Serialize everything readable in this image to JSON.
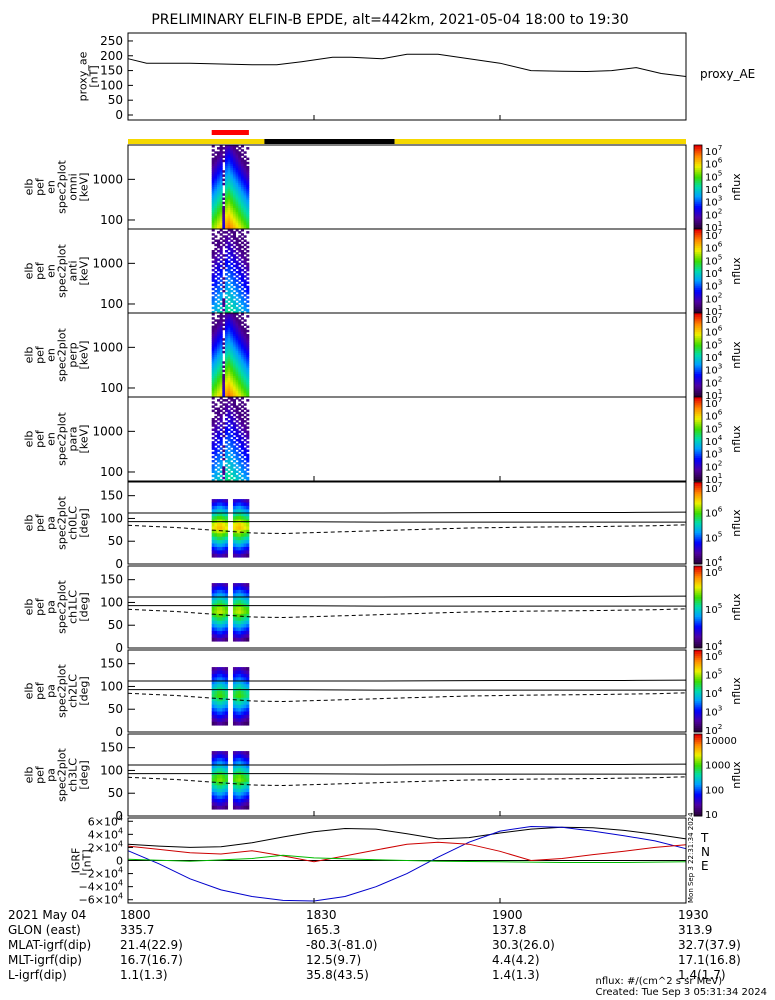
{
  "title": "PRELIMINARY ELFIN-B EPDE, alt=442km, 2021-05-04 18:00 to 19:30",
  "colors": {
    "ae_line": "#000000",
    "status_yellow": "#f5d800",
    "status_black": "#000000",
    "status_red": "#ff0000",
    "bx": "#000000",
    "by": "#0000cc",
    "bz": "#cc0000",
    "bt": "#00bb00",
    "grid": "#000000"
  },
  "ae_panel": {
    "ylabel": [
      "proxy_ae",
      "[nT]"
    ],
    "yticks": [
      "250",
      "200",
      "150",
      "100",
      "50",
      "0"
    ],
    "legend": "proxy_AE"
  },
  "energy_panels": [
    {
      "name": "omni",
      "ylabel": [
        "elb",
        "pef",
        "en",
        "spec2plot",
        "omni",
        "[keV]"
      ],
      "yticks": [
        "1000",
        "100"
      ],
      "cbar_ticks": [
        "10^7",
        "10^6",
        "10^5",
        "10^4",
        "10^3",
        "10^2",
        "10^1"
      ],
      "cbar_label": "nflux"
    },
    {
      "name": "anti",
      "ylabel": [
        "elb",
        "pef",
        "en",
        "spec2plot",
        "anti",
        "[keV]"
      ],
      "yticks": [
        "1000",
        "100"
      ],
      "cbar_ticks": [
        "10^7",
        "10^6",
        "10^5",
        "10^4",
        "10^3",
        "10^2",
        "10^1"
      ],
      "cbar_label": "nflux"
    },
    {
      "name": "perp",
      "ylabel": [
        "elb",
        "pef",
        "en",
        "spec2plot",
        "perp",
        "[keV]"
      ],
      "yticks": [
        "1000",
        "100"
      ],
      "cbar_ticks": [
        "10^7",
        "10^6",
        "10^5",
        "10^4",
        "10^3",
        "10^2",
        "10^1"
      ],
      "cbar_label": "nflux"
    },
    {
      "name": "para",
      "ylabel": [
        "elb",
        "pef",
        "en",
        "spec2plot",
        "para",
        "[keV]"
      ],
      "yticks": [
        "1000",
        "100"
      ],
      "cbar_ticks": [
        "10^7",
        "10^6",
        "10^5",
        "10^4",
        "10^3",
        "10^2",
        "10^1"
      ],
      "cbar_label": "nflux"
    }
  ],
  "pitch_panels": [
    {
      "name": "ch0LC",
      "ylabel": [
        "elb",
        "pef",
        "pa",
        "spec2plot",
        "ch0LC",
        "[deg]"
      ],
      "yticks": [
        "150",
        "100",
        "50",
        "0"
      ],
      "cbar_ticks": [
        "10^7",
        "10^6",
        "10^5",
        "10^4"
      ],
      "cbar_label": "nflux"
    },
    {
      "name": "ch1LC",
      "ylabel": [
        "elb",
        "pef",
        "pa",
        "spec2plot",
        "ch1LC",
        "[deg]"
      ],
      "yticks": [
        "150",
        "100",
        "50",
        "0"
      ],
      "cbar_ticks": [
        "10^6",
        "10^5",
        "10^4"
      ],
      "cbar_label": "nflux"
    },
    {
      "name": "ch2LC",
      "ylabel": [
        "elb",
        "pef",
        "pa",
        "spec2plot",
        "ch2LC",
        "[deg]"
      ],
      "yticks": [
        "150",
        "100",
        "50",
        "0"
      ],
      "cbar_ticks": [
        "10^6",
        "10^5",
        "10^4",
        "10^3",
        "10^2"
      ],
      "cbar_label": "nflux"
    },
    {
      "name": "ch3LC",
      "ylabel": [
        "elb",
        "pef",
        "pa",
        "spec2plot",
        "ch3LC",
        "[deg]"
      ],
      "yticks": [
        "150",
        "100",
        "50",
        "0"
      ],
      "cbar_ticks": [
        "10000",
        "1000",
        "100",
        "10"
      ],
      "cbar_label": "nflux"
    }
  ],
  "igrf_panel": {
    "ylabel": [
      "IGRF",
      "[nT]"
    ],
    "yticks": [
      "6×10^4",
      "4×10^4",
      "2×10^4",
      "0",
      "−2×10^4",
      "−4×10^4",
      "−6×10^4"
    ],
    "legend": [
      "T",
      "N",
      "E"
    ],
    "stamp": "Mon Sep  3 22:31:34 2024"
  },
  "footer": {
    "rows": [
      {
        "label": "2021 May 04",
        "values": [
          "1800",
          "1830",
          "1900",
          "1930"
        ]
      },
      {
        "label": "GLON (east)",
        "values": [
          "335.7",
          "165.3",
          "137.8",
          "313.9"
        ]
      },
      {
        "label": "MLAT-igrf(dip)",
        "values": [
          "21.4(22.9)",
          "-80.3(-81.0)",
          "30.3(26.0)",
          "32.7(37.9)"
        ]
      },
      {
        "label": "MLT-igrf(dip)",
        "values": [
          "16.7(16.7)",
          "12.5(9.7)",
          "4.4(4.2)",
          "17.1(16.8)"
        ]
      },
      {
        "label": "L-igrf(dip)",
        "values": [
          "1.1(1.3)",
          "35.8(43.5)",
          "1.4(1.3)",
          "1.4(1.7)"
        ]
      }
    ],
    "units": "nflux: #/(cm^2 s sr MeV)",
    "created": "Created: Tue Sep  3 05:31:34 2024"
  },
  "chart_data": {
    "type": "heatmap",
    "time_range": [
      "18:00",
      "19:30"
    ],
    "xtick_labels": [
      "1800",
      "1830",
      "1900",
      "1930"
    ],
    "status_bar": [
      {
        "from": "18:00",
        "to": "18:22",
        "color": "yellow"
      },
      {
        "from": "18:22",
        "to": "18:43",
        "color": "black"
      },
      {
        "from": "18:43",
        "to": "19:30",
        "color": "yellow"
      }
    ],
    "science_zone": {
      "from": "18:13.5",
      "to": "18:19.5",
      "color": "red"
    },
    "proxy_ae": {
      "ylim": [
        0,
        260
      ],
      "x_min": [
        0,
        3,
        10,
        20,
        24,
        28,
        33,
        36,
        41,
        45,
        50,
        55,
        60,
        65,
        70,
        74,
        78,
        82,
        86,
        90
      ],
      "y_nT": [
        190,
        175,
        175,
        170,
        170,
        180,
        195,
        195,
        190,
        205,
        205,
        190,
        175,
        150,
        148,
        147,
        150,
        160,
        140,
        130
      ]
    },
    "spectrogram_time_window": [
      "18:13.5",
      "18:19.5"
    ],
    "energy_ylim_keV": [
      60,
      7000
    ],
    "pitch_ylim_deg": [
      0,
      180
    ],
    "loss_cone_lines_deg": [
      {
        "x_min": [
          0,
          10,
          20,
          25,
          40,
          60,
          80,
          90
        ],
        "y": [
          112,
          112,
          112,
          112,
          112,
          113,
          113,
          114
        ]
      },
      {
        "x_min": [
          0,
          10,
          20,
          25,
          40,
          60,
          80,
          90
        ],
        "y": [
          93,
          93,
          93,
          93,
          92,
          92,
          92,
          92
        ]
      }
    ],
    "dashed_line_deg": {
      "x_min": [
        0,
        8,
        14,
        20,
        25,
        35,
        45,
        55,
        65,
        75,
        85,
        90
      ],
      "y": [
        85,
        80,
        74,
        68,
        67,
        71,
        75,
        79,
        81,
        82,
        84,
        86
      ]
    },
    "igrf_ylim": [
      -65000,
      65000
    ],
    "igrf_series": [
      {
        "name": "T",
        "x_min": [
          0,
          5,
          10,
          15,
          20,
          25,
          30,
          35,
          40,
          45,
          50,
          55,
          60,
          65,
          70,
          75,
          80,
          85,
          90
        ],
        "y": [
          25000,
          22000,
          20000,
          21000,
          27000,
          36000,
          44000,
          49000,
          48000,
          41000,
          33000,
          35000,
          42000,
          48000,
          51000,
          50000,
          46000,
          40000,
          33000
        ]
      },
      {
        "name": "N",
        "x_min": [
          0,
          5,
          10,
          15,
          20,
          25,
          30,
          35,
          40,
          45,
          50,
          55,
          60,
          65,
          70,
          75,
          80,
          85,
          90
        ],
        "y": [
          15000,
          -5000,
          -28000,
          -45000,
          -55000,
          -61000,
          -62000,
          -55000,
          -40000,
          -20000,
          5000,
          28000,
          45000,
          52000,
          51000,
          45000,
          38000,
          30000,
          18000
        ]
      },
      {
        "name": "E",
        "x_min": [
          0,
          5,
          10,
          15,
          20,
          25,
          30,
          35,
          40,
          45,
          50,
          55,
          60,
          65,
          70,
          75,
          80,
          85,
          90
        ],
        "y": [
          22000,
          17000,
          12000,
          10000,
          15000,
          7000,
          -2000,
          7000,
          16000,
          25000,
          28000,
          25000,
          14000,
          0,
          3000,
          9000,
          14000,
          20000,
          24000
        ]
      },
      {
        "name": "total",
        "x_min": [
          0,
          10,
          20,
          25,
          30,
          40,
          50,
          60,
          70,
          80,
          90
        ],
        "y": [
          2000,
          -1000,
          3000,
          8000,
          4000,
          1000,
          -1000,
          -2000,
          -3000,
          -3000,
          -2000
        ]
      }
    ]
  }
}
